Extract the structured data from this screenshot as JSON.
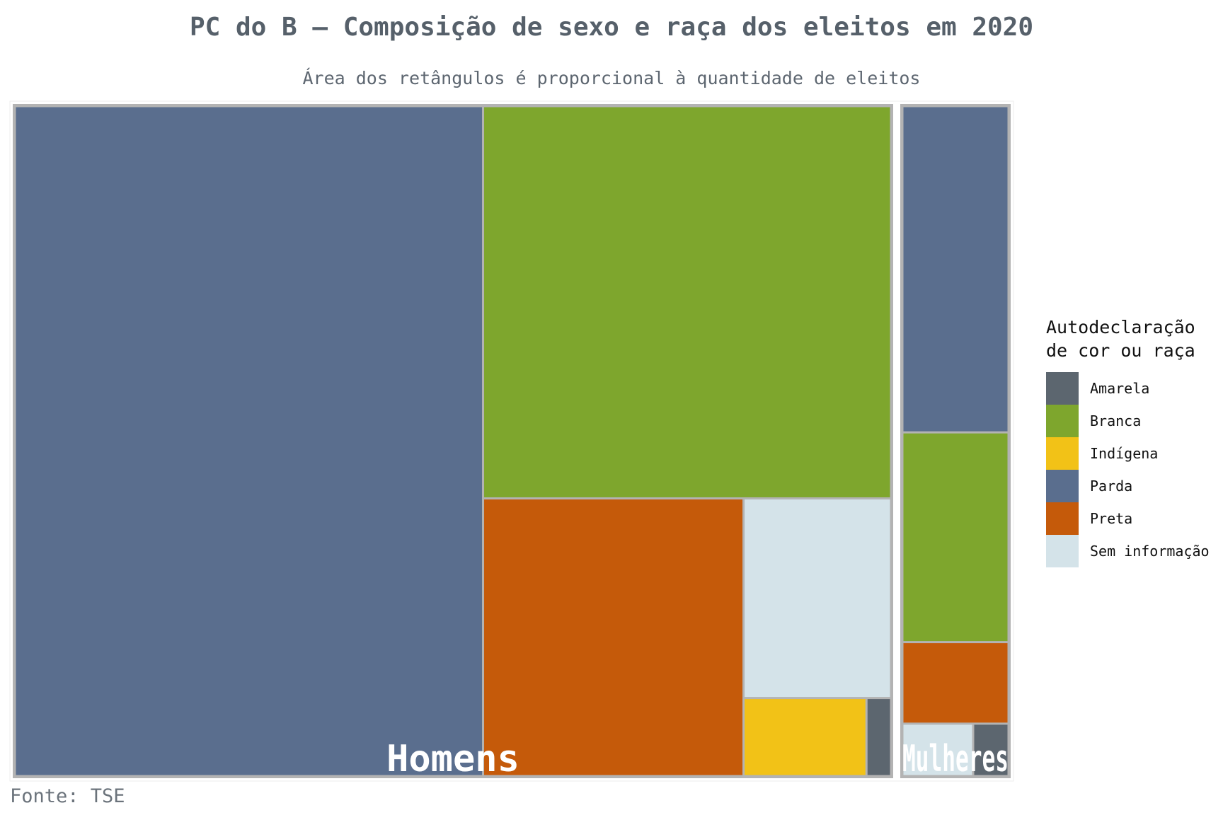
{
  "chart_data": {
    "type": "treemap",
    "title": "PC do B – Composição de sexo e raça dos eleitos em 2020",
    "subtitle": "Área dos retângulos é proporcional à quantidade de eleitos",
    "source": "Fonte: TSE",
    "legend": {
      "title": "Autodeclaração\nde cor ou raça",
      "placement": "right",
      "items": [
        {
          "label": "Amarela",
          "color": "#5c666f"
        },
        {
          "label": "Branca",
          "color": "#7ea62d"
        },
        {
          "label": "Indígena",
          "color": "#f2c217"
        },
        {
          "label": "Parda",
          "color": "#5a6e8e"
        },
        {
          "label": "Preta",
          "color": "#c55a0a"
        },
        {
          "label": "Sem informação",
          "color": "#d4e3e9"
        }
      ]
    },
    "groups": [
      {
        "name": "Homens",
        "values": [
          {
            "category": "Amarela",
            "value": 3
          },
          {
            "category": "Branca",
            "value": 250
          },
          {
            "category": "Indígena",
            "value": 15
          },
          {
            "category": "Parda",
            "value": 490
          },
          {
            "category": "Preta",
            "value": 113
          },
          {
            "category": "Sem informação",
            "value": 46
          }
        ]
      },
      {
        "name": "Mulheres",
        "values": [
          {
            "category": "Amarela",
            "value": 3
          },
          {
            "category": "Branca",
            "value": 36
          },
          {
            "category": "Parda",
            "value": 56
          },
          {
            "category": "Preta",
            "value": 14
          },
          {
            "category": "Sem informação",
            "value": 6
          }
        ]
      }
    ]
  }
}
